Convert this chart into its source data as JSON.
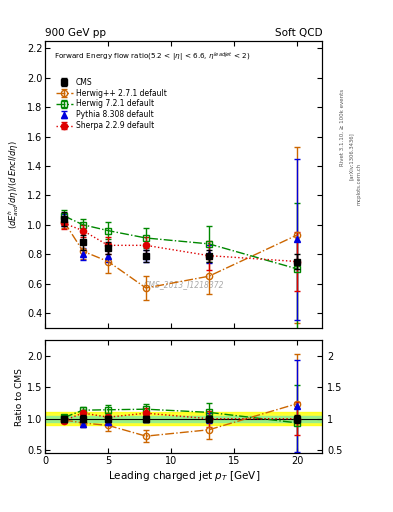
{
  "cms_x": [
    1.5,
    3.0,
    5.0,
    8.0,
    13.0,
    20.0
  ],
  "cms_y": [
    1.04,
    0.88,
    0.84,
    0.79,
    0.79,
    0.75
  ],
  "cms_yerr": [
    0.05,
    0.05,
    0.04,
    0.04,
    0.04,
    0.05
  ],
  "hpp_x": [
    1.5,
    3.0,
    5.0,
    8.0,
    13.0,
    20.0
  ],
  "hpp_y": [
    1.02,
    0.82,
    0.75,
    0.57,
    0.65,
    0.93
  ],
  "hpp_yerr": [
    0.04,
    0.05,
    0.08,
    0.08,
    0.12,
    0.6
  ],
  "h721_x": [
    1.5,
    3.0,
    5.0,
    8.0,
    13.0,
    20.0
  ],
  "h721_y": [
    1.06,
    1.0,
    0.96,
    0.91,
    0.87,
    0.7
  ],
  "h721_yerr": [
    0.04,
    0.04,
    0.06,
    0.07,
    0.12,
    0.45
  ],
  "py8_x": [
    1.5,
    3.0,
    5.0,
    8.0,
    13.0,
    20.0
  ],
  "py8_y": [
    1.03,
    0.8,
    0.79,
    0.79,
    0.8,
    0.9
  ],
  "py8_yerr": [
    0.04,
    0.04,
    0.04,
    0.04,
    0.06,
    0.55
  ],
  "sherpa_x": [
    1.5,
    3.0,
    5.0,
    8.0,
    13.0,
    20.0
  ],
  "sherpa_y": [
    1.01,
    0.96,
    0.86,
    0.86,
    0.79,
    0.75
  ],
  "sherpa_yerr": [
    0.04,
    0.04,
    0.06,
    0.06,
    0.1,
    0.2
  ],
  "cms_band_inner": 0.05,
  "cms_band_outer": 0.1,
  "color_cms": "#000000",
  "color_hpp": "#cc6600",
  "color_h721": "#008800",
  "color_py8": "#0000dd",
  "color_sherpa": "#dd0000",
  "xlim": [
    0,
    22
  ],
  "ylim_main": [
    0.3,
    2.25
  ],
  "ylim_ratio": [
    0.45,
    2.25
  ]
}
